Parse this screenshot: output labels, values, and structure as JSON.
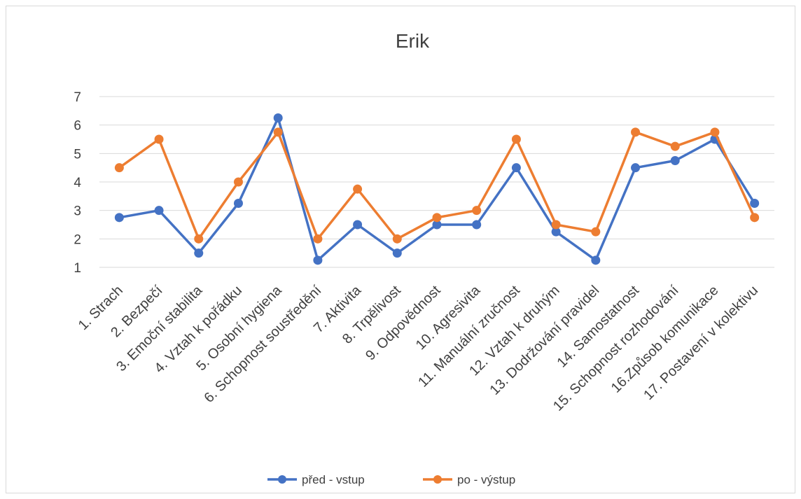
{
  "chart_data": {
    "type": "line",
    "title": "Erik",
    "xlabel": "",
    "ylabel": "",
    "ylim": [
      1,
      7
    ],
    "yticks": [
      1,
      2,
      3,
      4,
      5,
      6,
      7
    ],
    "grid": true,
    "legend_position": "bottom",
    "categories": [
      "1.       Strach",
      "2.       Bezpečí",
      "3.       Emoční stabilita",
      "4.       Vztah k pořádku",
      "5.       Osobní hygiena",
      "6.       Schopnost soustředění",
      "7.       Aktivita",
      "8.       Trpělivost",
      "9.       Odpovědnost",
      "10.  Agresivita",
      "11. Manuální zručnost",
      "12. Vztah k druhým",
      "13. Dodržování pravidel",
      "14. Samostatnost",
      "15. Schopnost rozhodování",
      "16.Způsob komunikace",
      "17. Postavení v kolektivu"
    ],
    "series": [
      {
        "name": "před - vstup",
        "color": "#4472c4",
        "values": [
          2.75,
          3,
          1.5,
          3.25,
          6.25,
          1.25,
          2.5,
          1.5,
          2.5,
          2.5,
          4.5,
          2.25,
          1.25,
          4.5,
          4.75,
          5.5,
          3.25
        ]
      },
      {
        "name": "po - výstup",
        "color": "#ed7d31",
        "values": [
          4.5,
          5.5,
          2,
          4,
          5.75,
          2,
          3.75,
          2,
          2.75,
          3,
          5.5,
          2.5,
          2.25,
          5.75,
          5.25,
          5.75,
          2.75
        ]
      }
    ]
  }
}
